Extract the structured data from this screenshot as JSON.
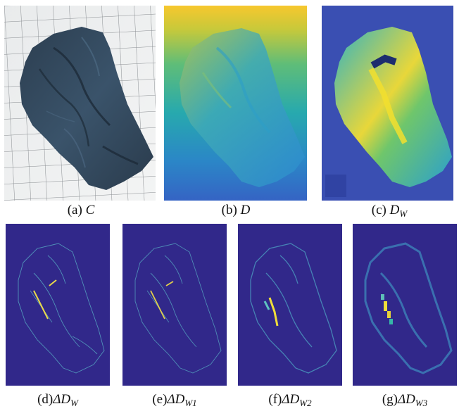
{
  "figure": {
    "panels": [
      {
        "id": "a",
        "prefix": "(a) ",
        "symbol": "C",
        "sub": ""
      },
      {
        "id": "b",
        "prefix": "(b) ",
        "symbol": "D",
        "sub": ""
      },
      {
        "id": "c",
        "prefix": "(c) ",
        "symbol": "D",
        "sub": "W"
      },
      {
        "id": "d",
        "prefix": "(d)",
        "symbol": "ΔD",
        "sub": "W"
      },
      {
        "id": "e",
        "prefix": "(e)",
        "symbol": "ΔD",
        "sub": "W1"
      },
      {
        "id": "f",
        "prefix": "(f)",
        "symbol": "ΔD",
        "sub": "W2"
      },
      {
        "id": "g",
        "prefix": "(g)",
        "symbol": "ΔD",
        "sub": "W3"
      }
    ],
    "colors": {
      "grid_bg": "#eceeee",
      "grid_line": "#8a8e92",
      "cloth": "#34495d",
      "cloth_dark": "#1f2e3c",
      "viridis_low": "#3b2e84",
      "viridis_mid": "#1f9fcb",
      "viridis_high": "#f6e529",
      "residual_bg": "#31288a"
    }
  }
}
